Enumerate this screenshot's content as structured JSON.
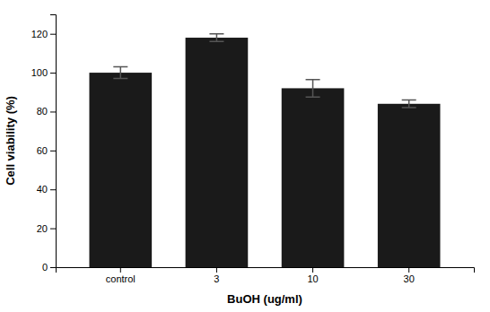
{
  "chart_data": {
    "type": "bar",
    "categories": [
      "control",
      "3",
      "10",
      "30"
    ],
    "values": [
      100,
      118,
      92,
      84
    ],
    "errors": [
      3.0,
      2.0,
      4.5,
      2.0
    ],
    "color": "#1a1a1a",
    "xlabel": "BuOH (ug/ml)",
    "ylabel": "Cell viability (%)",
    "ylim": [
      0,
      130
    ],
    "yticks": [
      0,
      20,
      40,
      60,
      80,
      100,
      120
    ],
    "grid": false
  }
}
